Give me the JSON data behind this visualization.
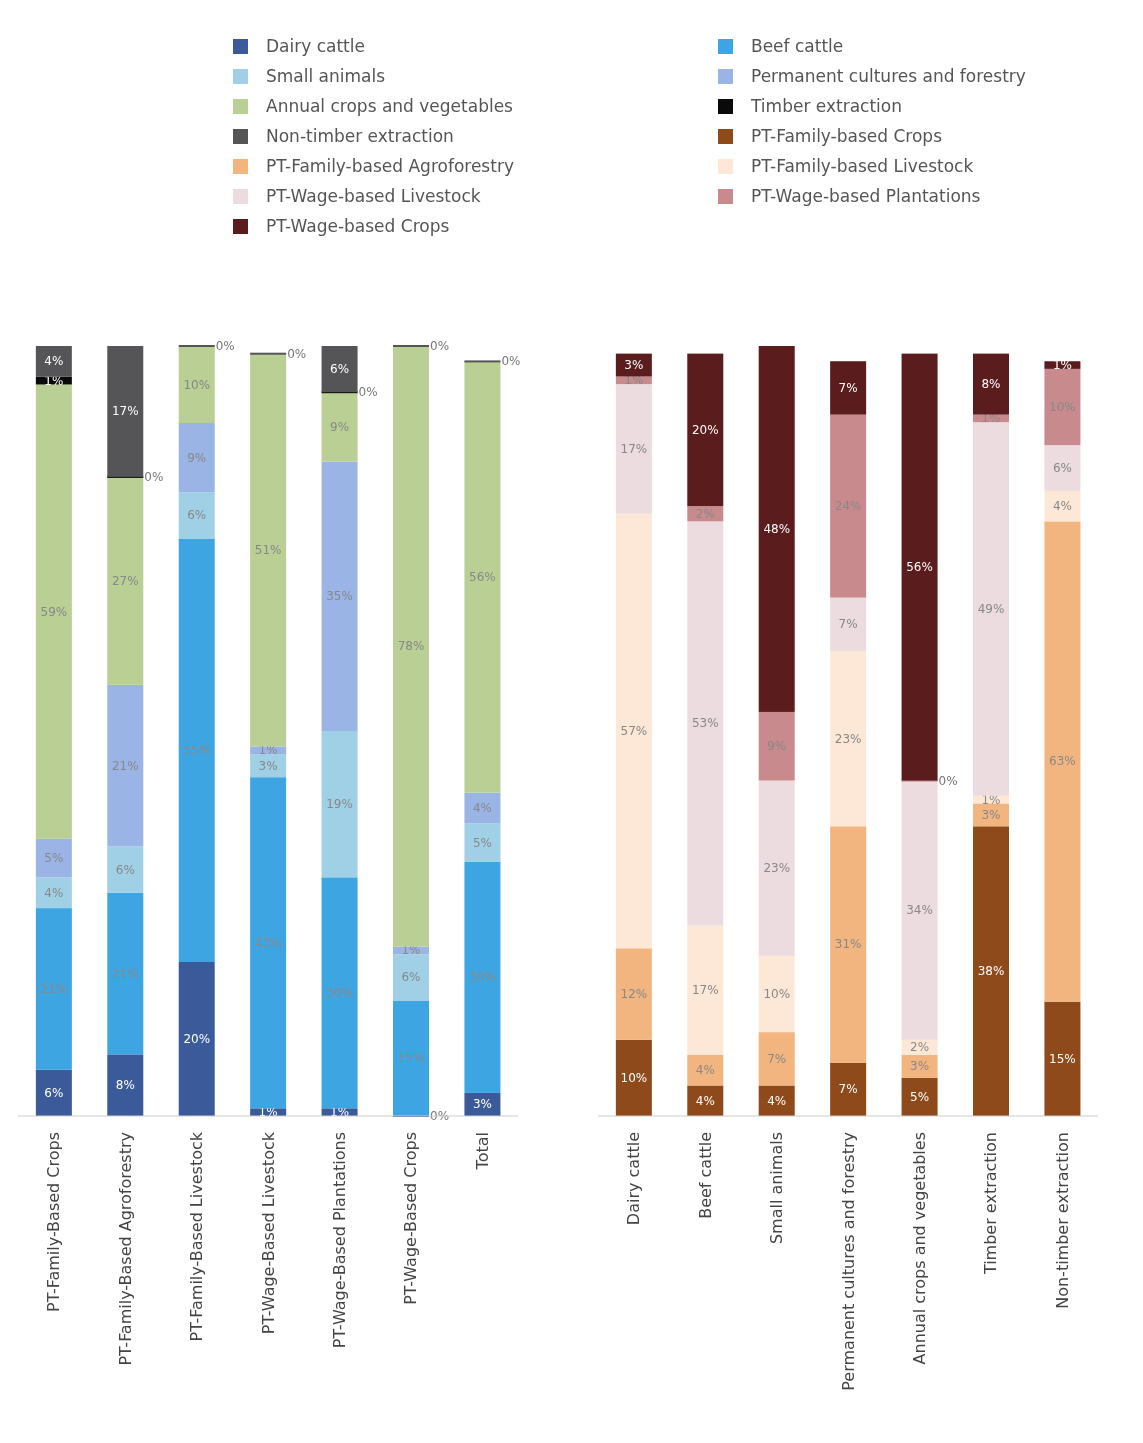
{
  "chart_data": [
    {
      "type": "bar",
      "stacked": true,
      "legend": "top",
      "data_labels": true,
      "categories": [
        "PT-Family-Based Crops",
        "PT-Family-Based Agroforestry",
        "PT-Family-Based Livestock",
        "PT-Wage-Based Livestock",
        "PT-Wage-Based Plantations",
        "PT-Wage-Based Crops",
        "Total"
      ],
      "series": [
        {
          "name": "Dairy cattle",
          "color": "#3a5a9a",
          "values": [
            6,
            8,
            20,
            1,
            1,
            0,
            3
          ],
          "value_labels": [
            "6%",
            "8%",
            "20%",
            "1%",
            "1%",
            "0%",
            "3%"
          ]
        },
        {
          "name": "Beef cattle",
          "color": "#3ea5e3",
          "values": [
            21,
            21,
            55,
            43,
            30,
            15,
            30
          ],
          "value_labels": [
            "21%",
            "21%",
            "55%",
            "43%",
            "30%",
            "15%",
            "30%"
          ]
        },
        {
          "name": "Small animals",
          "color": "#9fd0e6",
          "values": [
            4,
            6,
            6,
            3,
            19,
            6,
            5
          ],
          "value_labels": [
            "4%",
            "6%",
            "6%",
            "3%",
            "19%",
            "6%",
            "5%"
          ]
        },
        {
          "name": "Permanent cultures and forestry",
          "color": "#9bb4e6",
          "values": [
            5,
            21,
            9,
            1,
            35,
            1,
            4
          ],
          "value_labels": [
            "5%",
            "21%",
            "9%",
            "1%",
            "35%",
            "1%",
            "4%"
          ]
        },
        {
          "name": "Annual crops and vegetables",
          "color": "#b9cf94",
          "values": [
            59,
            27,
            10,
            51,
            9,
            78,
            56
          ],
          "value_labels": [
            "59%",
            "27%",
            "10%",
            "51%",
            "9%",
            "78%",
            "56%"
          ]
        },
        {
          "name": "Timber extraction",
          "color": "#0a0a0a",
          "values": [
            1,
            0,
            null,
            null,
            0,
            null,
            null
          ],
          "value_labels": [
            "1%",
            "0%",
            null,
            null,
            "0%",
            null,
            null
          ]
        },
        {
          "name": "Non-timber extraction",
          "color": "#555558",
          "values": [
            4,
            17,
            0,
            0,
            6,
            0,
            0
          ],
          "value_labels": [
            "4%",
            "17%",
            "0%",
            "0%",
            "6%",
            "0%",
            "0%"
          ]
        }
      ]
    },
    {
      "type": "bar",
      "stacked": true,
      "legend": "top",
      "data_labels": true,
      "categories": [
        "Dairy cattle",
        "Beef cattle",
        "Small animals",
        "Permanent cultures and forestry",
        "Annual crops and vegetables",
        "Timber extraction",
        "Non-timber extraction"
      ],
      "series": [
        {
          "name": "PT-Family-based Crops",
          "color": "#8e4a1a",
          "values": [
            10,
            4,
            4,
            7,
            5,
            38,
            15
          ],
          "value_labels": [
            "10%",
            "4%",
            "4%",
            "7%",
            "5%",
            "38%",
            "15%"
          ]
        },
        {
          "name": "PT-Family-based Agroforestry",
          "color": "#f2b57f",
          "values": [
            12,
            4,
            7,
            31,
            3,
            3,
            63
          ],
          "value_labels": [
            "12%",
            "4%",
            "7%",
            "31%",
            "3%",
            "3%",
            "63%"
          ]
        },
        {
          "name": "PT-Family-based Livestock",
          "color": "#fde8d8",
          "values": [
            57,
            17,
            10,
            23,
            2,
            1,
            4
          ],
          "value_labels": [
            "57%",
            "17%",
            "10%",
            "23%",
            "2%",
            "1%",
            "4%"
          ]
        },
        {
          "name": "PT-Wage-based Livestock",
          "color": "#ecdcdf",
          "values": [
            17,
            53,
            23,
            7,
            34,
            49,
            6
          ],
          "value_labels": [
            "17%",
            "53%",
            "23%",
            "7%",
            "34%",
            "49%",
            "6%"
          ]
        },
        {
          "name": "PT-Wage-based Plantations",
          "color": "#c98a8e",
          "values": [
            1,
            2,
            9,
            24,
            0,
            1,
            10
          ],
          "value_labels": [
            "1%",
            "2%",
            "9%",
            "24%",
            "0%",
            "1%",
            "10%"
          ]
        },
        {
          "name": "PT-Wage-based Crops",
          "color": "#5a1c1c",
          "values": [
            3,
            20,
            48,
            7,
            56,
            8,
            1
          ],
          "value_labels": [
            "3%",
            "20%",
            "48%",
            "7%",
            "56%",
            "8%",
            "1%"
          ]
        }
      ]
    }
  ]
}
